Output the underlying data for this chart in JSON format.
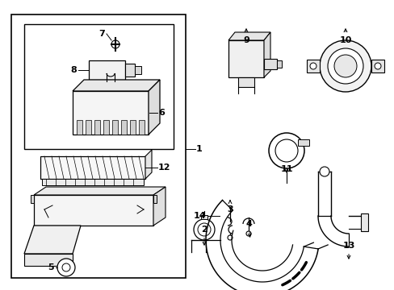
{
  "background_color": "#ffffff",
  "line_color": "#000000",
  "label_color": "#000000",
  "figsize": [
    4.89,
    3.6
  ],
  "dpi": 100
}
